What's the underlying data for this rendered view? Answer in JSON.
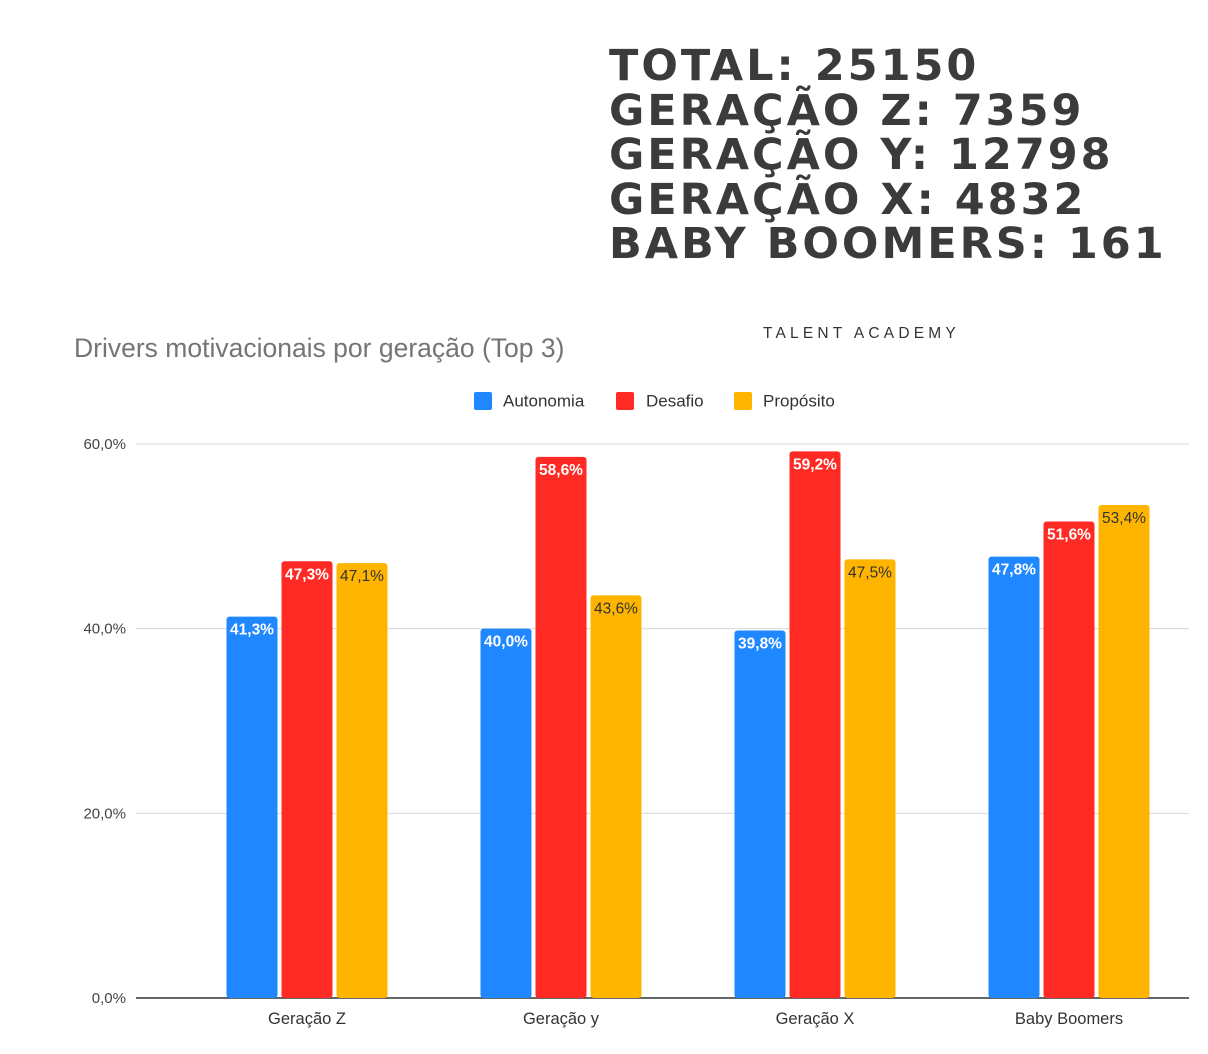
{
  "stats": [
    "TOTAL: 25150",
    "GERAÇÃO Z: 7359",
    "GERAÇÃO Y: 12798",
    "GERAÇÃO X: 4832",
    "BABY BOOMERS: 161"
  ],
  "brand": "TALENT ACADEMY",
  "chart_data": {
    "type": "bar",
    "title": "Drivers motivacionais por geração (Top 3)",
    "categories": [
      "Geração Z",
      "Geração y",
      "Geração X",
      "Baby Boomers"
    ],
    "series": [
      {
        "name": "Autonomia",
        "color": "#1f87ff",
        "values": [
          41.3,
          40.0,
          39.8,
          47.8
        ]
      },
      {
        "name": "Desafio",
        "color": "#ff2a23",
        "values": [
          47.3,
          58.6,
          59.2,
          51.6
        ]
      },
      {
        "name": "Propósito",
        "color": "#ffb500",
        "values": [
          47.1,
          43.6,
          47.5,
          53.4
        ]
      }
    ],
    "data_labels": [
      [
        "41,3%",
        "40,0%",
        "39,8%",
        "47,8%"
      ],
      [
        "47,3%",
        "58,6%",
        "59,2%",
        "51,6%"
      ],
      [
        "47,1%",
        "43,6%",
        "47,5%",
        "53,4%"
      ]
    ],
    "yticks": [
      0,
      20,
      40,
      60
    ],
    "ytick_labels": [
      "0,0%",
      "20,0%",
      "40,0%",
      "60,0%"
    ],
    "ylim": [
      0,
      60
    ],
    "grid": true,
    "legend_position": "top-center"
  }
}
